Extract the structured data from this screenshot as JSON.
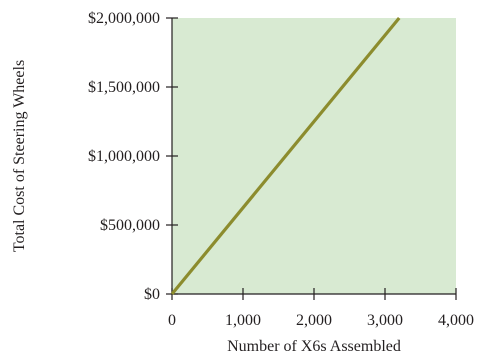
{
  "chart_data": {
    "type": "line",
    "xlabel": "Number of X6s Assembled",
    "ylabel": "Total Cost of Steering Wheels",
    "xlim": [
      0,
      4000
    ],
    "ylim": [
      0,
      2000000
    ],
    "x_ticks": [
      0,
      1000,
      2000,
      3000,
      4000
    ],
    "x_tick_labels": [
      "0",
      "1,000",
      "2,000",
      "3,000",
      "4,000"
    ],
    "y_ticks": [
      0,
      500000,
      1000000,
      1500000,
      2000000
    ],
    "y_tick_labels": [
      "$0",
      "$500,000",
      "$1,000,000",
      "$1,500,000",
      "$2,000,000"
    ],
    "grid": false,
    "series": [
      {
        "x": [
          0,
          3200
        ],
        "y": [
          0,
          2000000
        ]
      }
    ],
    "colors": {
      "plot_background": "#d8ead2",
      "line": "#8c8c2e",
      "axis": "#231f20"
    }
  }
}
